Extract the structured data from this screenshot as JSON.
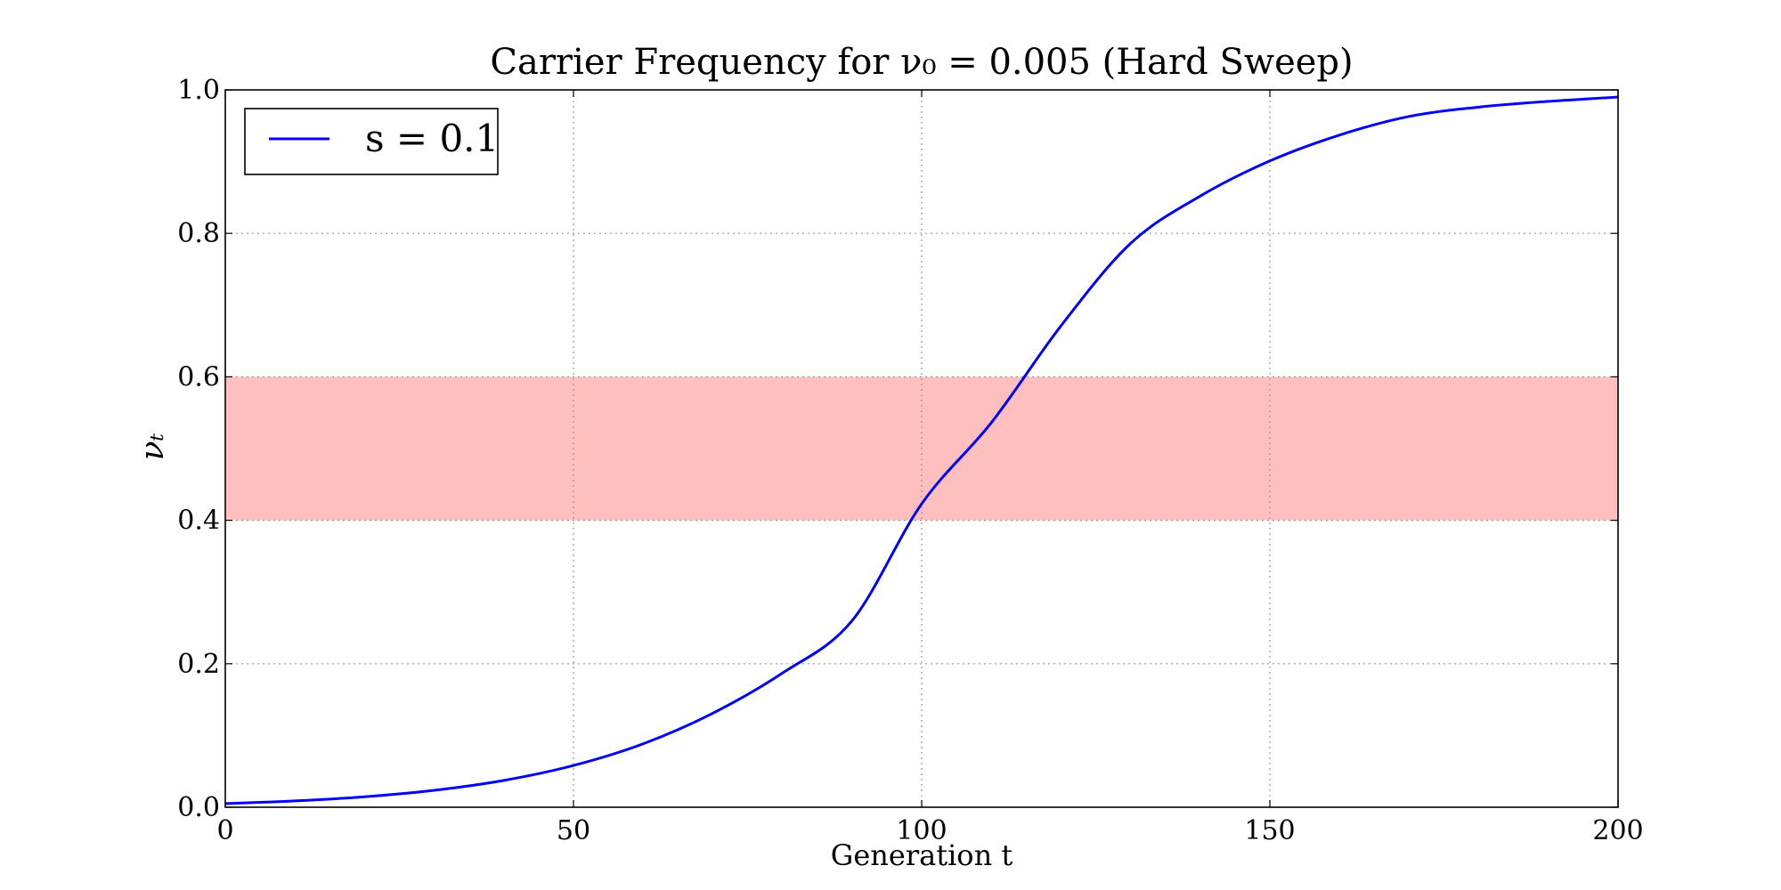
{
  "chart_data": {
    "type": "line",
    "title": "Carrier Frequency for ν₀ = 0.005 (Hard Sweep)",
    "xlabel": "Generation t",
    "ylabel": "νₜ",
    "xlim": [
      0,
      200
    ],
    "ylim": [
      0.0,
      1.0
    ],
    "x_ticks": [
      0,
      50,
      100,
      150,
      200
    ],
    "x_tick_labels": [
      "0",
      "50",
      "100",
      "150",
      "200"
    ],
    "y_ticks": [
      0.0,
      0.2,
      0.4,
      0.6,
      0.8,
      1.0
    ],
    "y_tick_labels": [
      "0.0",
      "0.2",
      "0.4",
      "0.6",
      "0.8",
      "1.0"
    ],
    "grid": true,
    "legend": {
      "placement": "top-left",
      "entries": [
        "s = 0.1"
      ]
    },
    "band": {
      "y_from": 0.4,
      "y_to": 0.6,
      "color": "#ffbfbf"
    },
    "series": [
      {
        "name": "s = 0.1",
        "color": "#0000ff",
        "x": [
          0,
          10,
          20,
          30,
          40,
          50,
          60,
          70,
          80,
          90,
          100,
          110,
          120,
          130,
          140,
          150,
          160,
          170,
          180,
          190,
          200
        ],
        "y": [
          0.005,
          0.0088,
          0.0146,
          0.0236,
          0.0374,
          0.0582,
          0.0884,
          0.131,
          0.187,
          0.26,
          0.423,
          0.536,
          0.671,
          0.786,
          0.852,
          0.901,
          0.937,
          0.963,
          0.976,
          0.984,
          0.99
        ]
      }
    ]
  }
}
